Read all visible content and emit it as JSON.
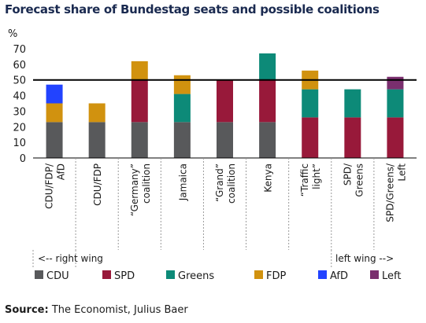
{
  "title": "Forecast share of Bundestag seats and possible coalitions",
  "source": {
    "label": "Source:",
    "text": "The Economist, Julius Baer"
  },
  "chart_data": {
    "type": "bar",
    "stacked": true,
    "ylabel": "%",
    "ylim": [
      0,
      70
    ],
    "yticks": [
      0,
      10,
      20,
      30,
      40,
      50,
      60,
      70
    ],
    "reference_line": 50,
    "grid": false,
    "legend_position": "bottom",
    "categories": [
      [
        "CDU/FDP/",
        "AfD"
      ],
      [
        "CDU/FDP"
      ],
      [
        "“Germany”",
        "coalition"
      ],
      [
        "Jamaica"
      ],
      [
        "“Grand”",
        "coalition"
      ],
      [
        "Kenya"
      ],
      [
        "“Traffic",
        "light”"
      ],
      [
        "SPD/",
        "Greens"
      ],
      [
        "SPD/Greens/",
        "Left"
      ]
    ],
    "series": [
      {
        "name": "CDU",
        "color": "#58595b",
        "values": [
          23,
          23,
          23,
          23,
          23,
          23,
          0,
          0,
          0
        ]
      },
      {
        "name": "SPD",
        "color": "#98193a",
        "values": [
          0,
          0,
          27,
          0,
          27,
          27,
          26,
          26,
          26
        ]
      },
      {
        "name": "Greens",
        "color": "#0d8a78",
        "values": [
          0,
          0,
          0,
          18,
          0,
          17,
          18,
          18,
          18
        ]
      },
      {
        "name": "FDP",
        "color": "#d1920f",
        "values": [
          12,
          12,
          12,
          12,
          0,
          0,
          12,
          0,
          0
        ]
      },
      {
        "name": "AfD",
        "color": "#2243ff",
        "values": [
          12,
          0,
          0,
          0,
          0,
          0,
          0,
          0,
          0
        ]
      },
      {
        "name": "Left",
        "color": "#7a2f6e",
        "values": [
          0,
          0,
          0,
          0,
          0,
          0,
          0,
          0,
          8
        ]
      }
    ],
    "annotations": {
      "right_wing": "<-- right wing",
      "left_wing": "left wing -->"
    }
  }
}
